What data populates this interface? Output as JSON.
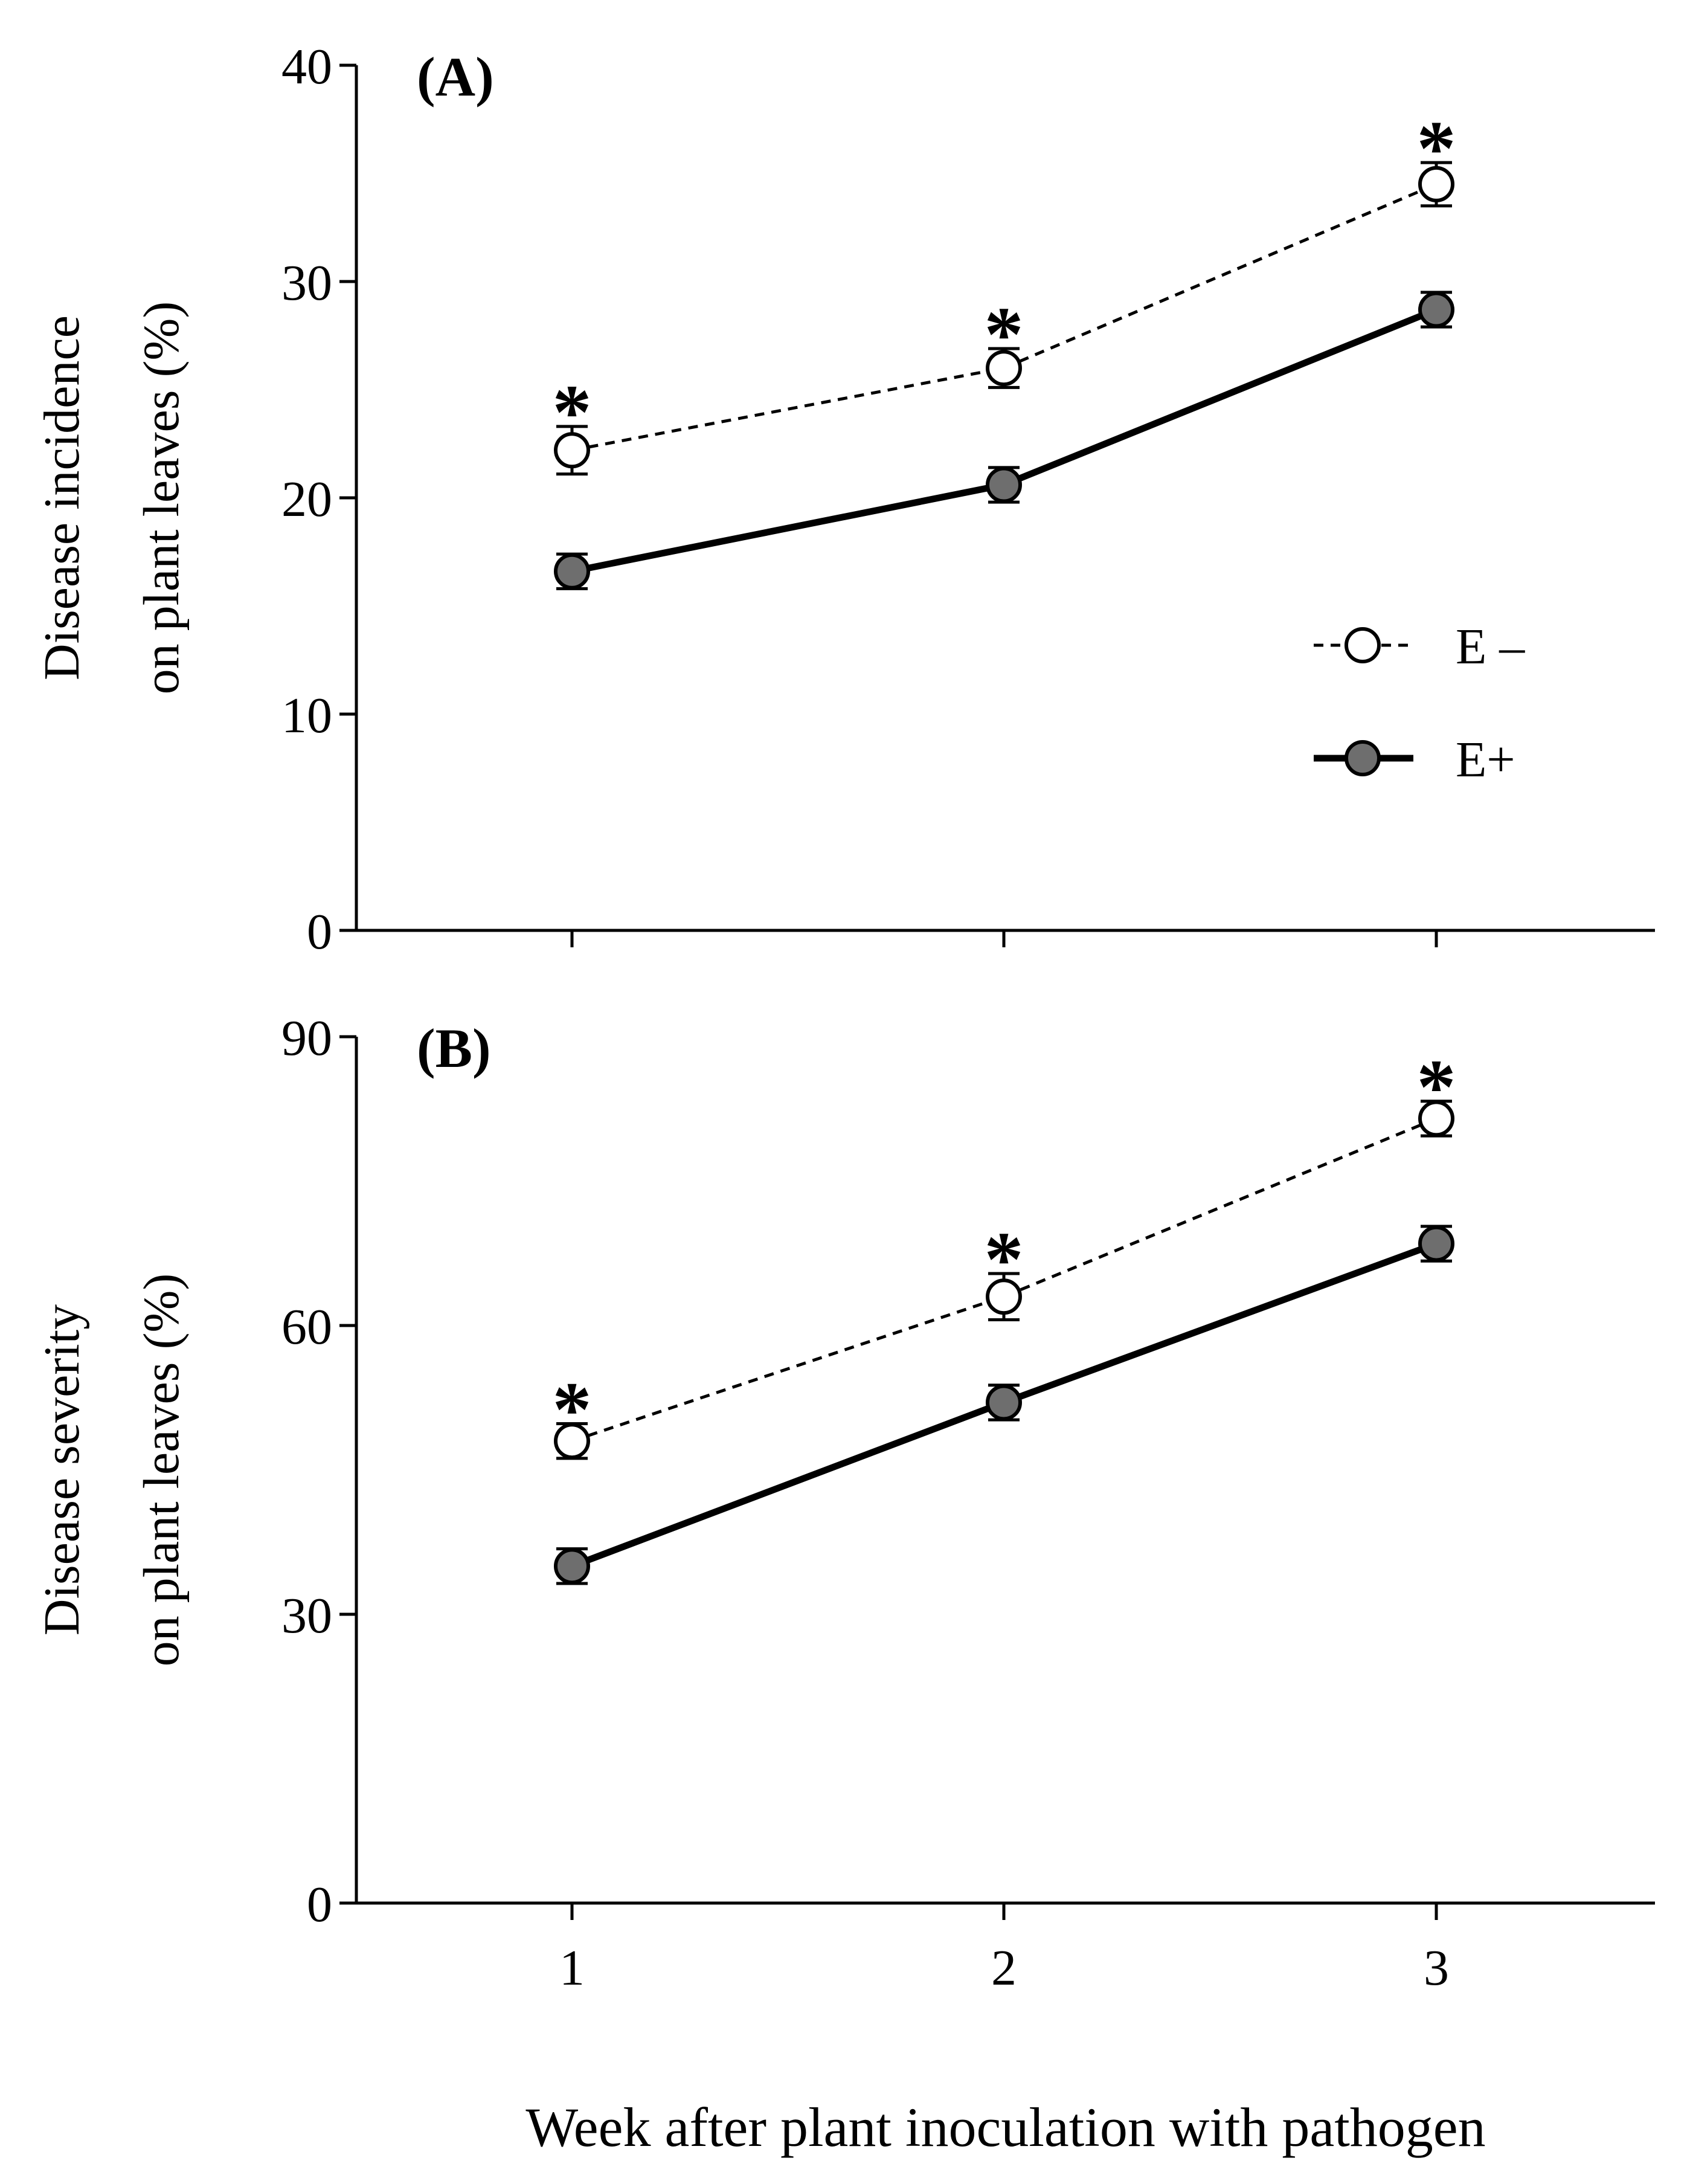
{
  "figure": {
    "xlabel": "Week after plant inoculation with pathogen",
    "x_ticks": [
      "1",
      "2",
      "3"
    ],
    "legend": [
      {
        "key": "e_minus",
        "label": "E –"
      },
      {
        "key": "e_plus",
        "label": "E+"
      }
    ],
    "colors": {
      "e_minus_fill": "#ffffff",
      "e_plus_fill": "#6e6e6e",
      "stroke": "#000000"
    },
    "significance_mark": "*"
  },
  "chart_data": [
    {
      "type": "line",
      "panel_label": "(A)",
      "title": "",
      "xlabel": "Week after plant inoculation with pathogen",
      "ylabel_lines": [
        "Disease incidence",
        "on plant leaves (%)"
      ],
      "x": [
        1,
        2,
        3
      ],
      "xlim": [
        0.5,
        3.5
      ],
      "ylim": [
        0,
        40
      ],
      "y_ticks": [
        0,
        10,
        20,
        30,
        40
      ],
      "y_tick_labels": [
        "0",
        "10",
        "20",
        "30",
        "40"
      ],
      "series": [
        {
          "name": "E –",
          "key": "e_minus",
          "values": [
            22.2,
            26.0,
            34.5
          ],
          "errors": [
            1.1,
            0.9,
            1.0
          ]
        },
        {
          "name": "E+",
          "key": "e_plus",
          "values": [
            16.6,
            20.6,
            28.7
          ],
          "errors": [
            0.8,
            0.8,
            0.8
          ]
        }
      ],
      "significance": [
        "*",
        "*",
        "*"
      ],
      "show_legend": true
    },
    {
      "type": "line",
      "panel_label": "(B)",
      "title": "",
      "xlabel": "Week after plant inoculation with pathogen",
      "ylabel_lines": [
        "Disease severity",
        "on plant leaves (%)"
      ],
      "x": [
        1,
        2,
        3
      ],
      "xlim": [
        0.5,
        3.5
      ],
      "ylim": [
        0,
        90
      ],
      "y_ticks": [
        0,
        30,
        60,
        90
      ],
      "y_tick_labels": [
        "0",
        "30",
        "60",
        "90"
      ],
      "series": [
        {
          "name": "E –",
          "key": "e_minus",
          "values": [
            48.0,
            63.0,
            81.5
          ],
          "errors": [
            1.8,
            2.4,
            1.8
          ]
        },
        {
          "name": "E+",
          "key": "e_plus",
          "values": [
            35.0,
            52.0,
            68.5
          ],
          "errors": [
            1.8,
            1.8,
            1.8
          ]
        }
      ],
      "significance": [
        "*",
        "*",
        "*"
      ],
      "show_legend": false
    }
  ]
}
